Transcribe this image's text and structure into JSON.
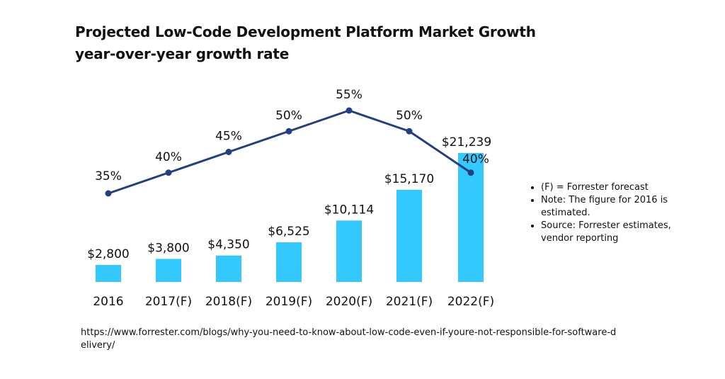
{
  "title": "Projected Low-Code Development Platform Market Growth",
  "subtitle": "year-over-year growth rate",
  "notes": [
    "(F) = Forrester forecast",
    "Note: The figure for 2016 is estimated.",
    "Source: Forrester estimates, vendor reporting"
  ],
  "source_url": "https://www.forrester.com/blogs/why-you-need-to-know-about-low-code-even-if-youre-not-responsible-for-software-delivery/",
  "colors": {
    "bar": "#33c9ff",
    "line": "#243f80",
    "text": "#111111"
  },
  "chart_data": {
    "type": "bar",
    "title": "Projected Low-Code Development Platform Market Growth",
    "subtitle": "year-over-year growth rate",
    "categories": [
      "2016",
      "2017(F)",
      "2018(F)",
      "2019(F)",
      "2020(F)",
      "2021(F)",
      "2022(F)"
    ],
    "series": [
      {
        "type": "bar",
        "values": [
          2800,
          3800,
          4350,
          6525,
          10114,
          15170,
          21239
        ],
        "labels": [
          "$2,800",
          "$3,800",
          "$4,350",
          "$6,525",
          "$10,114",
          "$15,170",
          "$21,239"
        ]
      },
      {
        "type": "line",
        "values": [
          35,
          40,
          45,
          50,
          55,
          50,
          40
        ],
        "labels": [
          "35%",
          "40%",
          "45%",
          "50%",
          "55%",
          "50%",
          "40%"
        ]
      }
    ],
    "bar_ylim": [
      0,
      24500
    ],
    "line_ylim": [
      0,
      60
    ],
    "grid": false,
    "legend": "none"
  }
}
